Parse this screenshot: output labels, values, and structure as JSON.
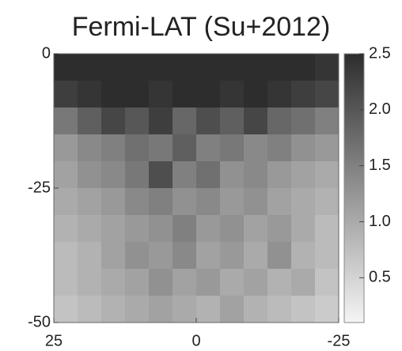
{
  "chart_data": {
    "type": "heatmap",
    "title": "Fermi-LAT (Su+2012)",
    "xlim": [
      25,
      -25
    ],
    "xticks": [
      25,
      0,
      -25
    ],
    "ylim": [
      -50,
      0
    ],
    "yticks": [
      -50,
      -25,
      0
    ],
    "clim": [
      0.1,
      2.5
    ],
    "cticks": [
      {
        "value": 0.5,
        "label": "0.5"
      },
      {
        "value": 1.0,
        "label": "1.0"
      },
      {
        "value": 1.5,
        "label": "1.5"
      },
      {
        "value": 2.0,
        "label": "2.0"
      },
      {
        "value": 2.5,
        "label": "2.5"
      }
    ],
    "z": [
      [
        2.5,
        2.5,
        2.5,
        2.5,
        2.5,
        2.5,
        2.5,
        2.5,
        2.5,
        2.5,
        2.5,
        2.4
      ],
      [
        2.3,
        2.4,
        2.5,
        2.5,
        2.4,
        2.5,
        2.5,
        2.4,
        2.5,
        2.4,
        2.3,
        2.2
      ],
      [
        1.6,
        1.9,
        2.2,
        2.0,
        2.3,
        1.8,
        2.1,
        1.9,
        2.2,
        1.8,
        1.7,
        1.5
      ],
      [
        1.2,
        1.4,
        1.5,
        1.7,
        1.6,
        1.9,
        1.5,
        1.6,
        1.4,
        1.5,
        1.3,
        1.2
      ],
      [
        1.1,
        1.3,
        1.4,
        1.6,
        2.1,
        1.5,
        1.7,
        1.3,
        1.4,
        1.2,
        1.1,
        1.0
      ],
      [
        1.0,
        1.1,
        1.2,
        1.4,
        1.5,
        1.3,
        1.4,
        1.2,
        1.3,
        1.1,
        1.0,
        0.9
      ],
      [
        0.9,
        1.0,
        1.1,
        1.2,
        1.3,
        1.5,
        1.2,
        1.3,
        1.1,
        1.2,
        1.0,
        0.8
      ],
      [
        0.8,
        0.9,
        1.1,
        1.3,
        1.2,
        1.4,
        1.1,
        1.2,
        1.0,
        1.3,
        0.9,
        0.8
      ],
      [
        0.8,
        0.9,
        1.0,
        1.1,
        1.3,
        1.1,
        1.2,
        1.0,
        1.1,
        0.9,
        1.0,
        0.7
      ],
      [
        0.7,
        0.8,
        0.9,
        1.0,
        1.1,
        1.0,
        0.9,
        1.1,
        0.9,
        0.8,
        0.7,
        0.6
      ]
    ]
  }
}
